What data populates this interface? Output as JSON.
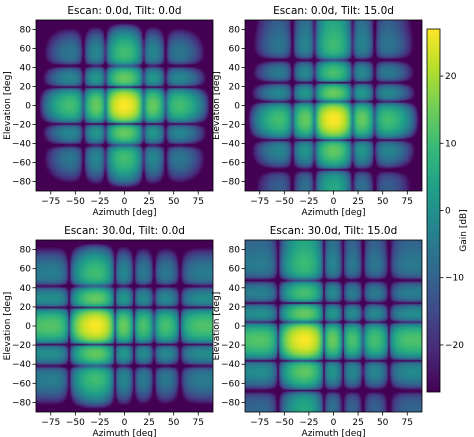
{
  "chart_data": [
    {
      "type": "heatmap",
      "title": "Escan: 0.0d, Tilt: 0.0d",
      "escan_deg": 0,
      "tilt_deg": 0,
      "xlabel": "Azimuth [deg]",
      "ylabel": "Elevation [deg]",
      "xlim": [
        -90,
        90
      ],
      "ylim": [
        -90,
        90
      ],
      "xticks": [
        "−75",
        "−50",
        "−25",
        "0",
        "25",
        "50",
        "75"
      ],
      "yticks": [
        "−80",
        "−60",
        "−40",
        "−20",
        "0",
        "20",
        "40",
        "60",
        "80"
      ],
      "main_lobe": {
        "azimuth": 0,
        "elevation": 0
      }
    },
    {
      "type": "heatmap",
      "title": "Escan: 0.0d, Tilt: 15.0d",
      "escan_deg": 0,
      "tilt_deg": 15,
      "xlabel": "Azimuth [deg]",
      "ylabel": "Elevation [deg]",
      "xlim": [
        -90,
        90
      ],
      "ylim": [
        -90,
        90
      ],
      "xticks": [
        "−75",
        "−50",
        "−25",
        "0",
        "25",
        "50",
        "75"
      ],
      "yticks": [
        "−80",
        "−60",
        "−40",
        "−20",
        "0",
        "20",
        "40",
        "60",
        "80"
      ],
      "main_lobe": {
        "azimuth": 0,
        "elevation": -15
      }
    },
    {
      "type": "heatmap",
      "title": "Escan: 30.0d, Tilt: 0.0d",
      "escan_deg": 30,
      "tilt_deg": 0,
      "xlabel": "Azimuth [deg]",
      "ylabel": "Elevation [deg]",
      "xlim": [
        -90,
        90
      ],
      "ylim": [
        -90,
        90
      ],
      "xticks": [
        "−75",
        "−50",
        "−25",
        "0",
        "25",
        "50",
        "75"
      ],
      "yticks": [
        "−80",
        "−60",
        "−40",
        "−20",
        "0",
        "20",
        "40",
        "60",
        "80"
      ],
      "main_lobe": {
        "azimuth": -30,
        "elevation": 0
      }
    },
    {
      "type": "heatmap",
      "title": "Escan: 30.0d, Tilt: 15.0d",
      "escan_deg": 30,
      "tilt_deg": 15,
      "xlabel": "Azimuth [deg]",
      "ylabel": "Elevation [deg]",
      "xlim": [
        -90,
        90
      ],
      "ylim": [
        -90,
        90
      ],
      "xticks": [
        "−75",
        "−50",
        "−25",
        "0",
        "25",
        "50",
        "75"
      ],
      "yticks": [
        "−80",
        "−60",
        "−40",
        "−20",
        "0",
        "20",
        "40",
        "60",
        "80"
      ],
      "main_lobe": {
        "azimuth": -30,
        "elevation": -15
      }
    }
  ],
  "colorbar": {
    "label": "Gain [dB]",
    "range": [
      -27,
      27
    ],
    "ticks": [
      "20",
      "10",
      "0",
      "−10",
      "−20"
    ],
    "tick_values": [
      20,
      10,
      0,
      -10,
      -20
    ],
    "colormap": "viridis"
  }
}
